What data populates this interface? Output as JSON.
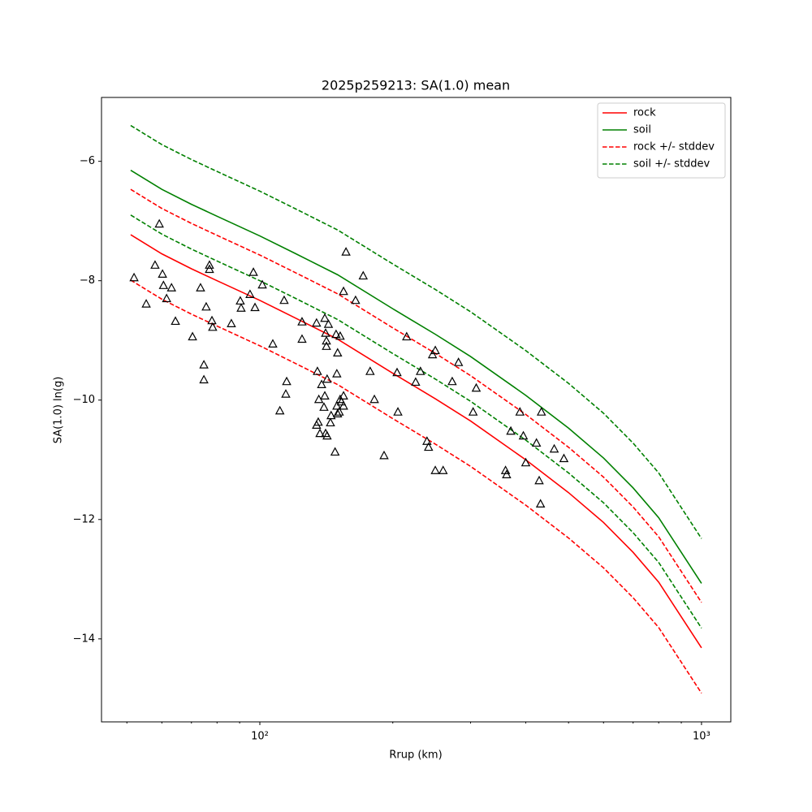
{
  "chart_data": {
    "type": "line",
    "title": "2025p259213: SA(1.0) mean",
    "xlabel": "Rrup (km)",
    "ylabel": "SA(1.0) ln(g)",
    "xscale": "log",
    "xlim": [
      43.8,
      1165
    ],
    "ylim": [
      -15.39,
      -4.93
    ],
    "xticks": [
      {
        "value": 100,
        "label": "10²"
      },
      {
        "value": 1000,
        "label": "10³"
      }
    ],
    "xminorticks": [
      50,
      60,
      70,
      80,
      90,
      200,
      300,
      400,
      500,
      600,
      700,
      800,
      900
    ],
    "yticks": [
      {
        "value": -14,
        "label": "−14"
      },
      {
        "value": -12,
        "label": "−12"
      },
      {
        "value": -10,
        "label": "−10"
      },
      {
        "value": -8,
        "label": "−8"
      },
      {
        "value": -6,
        "label": "−6"
      }
    ],
    "grid": false,
    "legend": "upper right",
    "x": [
      51,
      60,
      70,
      80,
      100,
      120,
      150,
      200,
      250,
      300,
      400,
      500,
      600,
      700,
      800,
      1000
    ],
    "series": [
      {
        "name": "rock",
        "color": "#ff0000",
        "dashed": false,
        "values": [
          -7.23,
          -7.55,
          -7.8,
          -8.0,
          -8.33,
          -8.62,
          -8.98,
          -9.55,
          -9.98,
          -10.35,
          -11.0,
          -11.55,
          -12.05,
          -12.55,
          -13.05,
          -14.15
        ]
      },
      {
        "name": "soil",
        "color": "#008000",
        "dashed": false,
        "values": [
          -6.15,
          -6.47,
          -6.72,
          -6.92,
          -7.25,
          -7.54,
          -7.9,
          -8.47,
          -8.9,
          -9.27,
          -9.92,
          -10.47,
          -10.97,
          -11.47,
          -11.97,
          -13.07
        ]
      },
      {
        "name": "rock +/- stddev",
        "color": "#ff0000",
        "dashed": true,
        "upper": [
          -6.47,
          -6.79,
          -7.04,
          -7.24,
          -7.57,
          -7.86,
          -8.22,
          -8.79,
          -9.22,
          -9.59,
          -10.24,
          -10.79,
          -11.29,
          -11.79,
          -12.29,
          -13.39
        ],
        "lower": [
          -7.99,
          -8.31,
          -8.56,
          -8.76,
          -9.09,
          -9.38,
          -9.74,
          -10.31,
          -10.74,
          -11.11,
          -11.76,
          -12.31,
          -12.81,
          -13.31,
          -13.81,
          -14.91
        ]
      },
      {
        "name": "soil +/- stddev",
        "color": "#008000",
        "dashed": true,
        "upper": [
          -5.4,
          -5.72,
          -5.97,
          -6.17,
          -6.5,
          -6.79,
          -7.15,
          -7.72,
          -8.15,
          -8.52,
          -9.17,
          -9.72,
          -10.22,
          -10.72,
          -11.22,
          -12.32
        ],
        "lower": [
          -6.9,
          -7.22,
          -7.47,
          -7.67,
          -8.0,
          -8.29,
          -8.65,
          -9.22,
          -9.65,
          -10.02,
          -10.67,
          -11.22,
          -11.72,
          -12.22,
          -12.72,
          -13.82
        ]
      }
    ],
    "points": {
      "color": "#000000",
      "marker": "triangle",
      "x": [
        51.9,
        55.3,
        57.9,
        59.2,
        60.2,
        60.5,
        61.5,
        63.1,
        64.4,
        70.4,
        73.4,
        74.7,
        74.7,
        75.6,
        76.9,
        76.9,
        77.9,
        78.2,
        86.2,
        90.3,
        90.7,
        95.0,
        96.7,
        97.5,
        101.3,
        107,
        111,
        113.5,
        115,
        114.5,
        124.6,
        124.6,
        134.4,
        135,
        135.6,
        134.4,
        136,
        136.8,
        138,
        139.7,
        140.3,
        140.3,
        140.9,
        141.5,
        141.5,
        142,
        140.9,
        142,
        143,
        144.5,
        145,
        148,
        148.8,
        149.4,
        149.4,
        150,
        150,
        151.3,
        152,
        152,
        153,
        154.7,
        154.7,
        156.7,
        154.7,
        164.7,
        171.4,
        177.7,
        181.7,
        191.1,
        204.5,
        205.4,
        215,
        225.3,
        231,
        239,
        241,
        246,
        249.6,
        249.6,
        260,
        272.6,
        281.7,
        304,
        309,
        360,
        362,
        370,
        388,
        395,
        400,
        423,
        429,
        432,
        434,
        464,
        488
      ],
      "y": [
        -7.95,
        -8.39,
        -7.74,
        -7.05,
        -7.89,
        -8.08,
        -8.3,
        -8.12,
        -8.68,
        -8.94,
        -8.12,
        -9.41,
        -9.66,
        -8.44,
        -7.74,
        -7.81,
        -8.67,
        -8.78,
        -8.72,
        -8.34,
        -8.46,
        -8.23,
        -7.86,
        -8.45,
        -8.07,
        -9.06,
        -10.18,
        -8.33,
        -9.69,
        -9.9,
        -8.69,
        -8.98,
        -8.71,
        -9.52,
        -10.37,
        -10.42,
        -9.99,
        -10.56,
        -9.74,
        -10.12,
        -9.93,
        -8.63,
        -8.88,
        -9.01,
        -9.1,
        -9.65,
        -10.56,
        -10.6,
        -8.73,
        -10.38,
        -10.26,
        -10.87,
        -8.9,
        -9.56,
        -10.1,
        -9.21,
        -10.23,
        -10.2,
        -8.93,
        -9.99,
        -10.03,
        -9.93,
        -10.1,
        -7.52,
        -8.18,
        -8.33,
        -7.92,
        -9.52,
        -9.99,
        -10.93,
        -9.54,
        -10.2,
        -8.94,
        -9.7,
        -9.52,
        -10.69,
        -10.79,
        -9.24,
        -9.17,
        -11.18,
        -11.18,
        -9.69,
        -9.37,
        -10.2,
        -9.8,
        -11.18,
        -11.25,
        -10.52,
        -10.2,
        -10.6,
        -11.05,
        -10.72,
        -11.35,
        -11.74,
        -10.2,
        -10.82,
        -10.98
      ]
    }
  }
}
